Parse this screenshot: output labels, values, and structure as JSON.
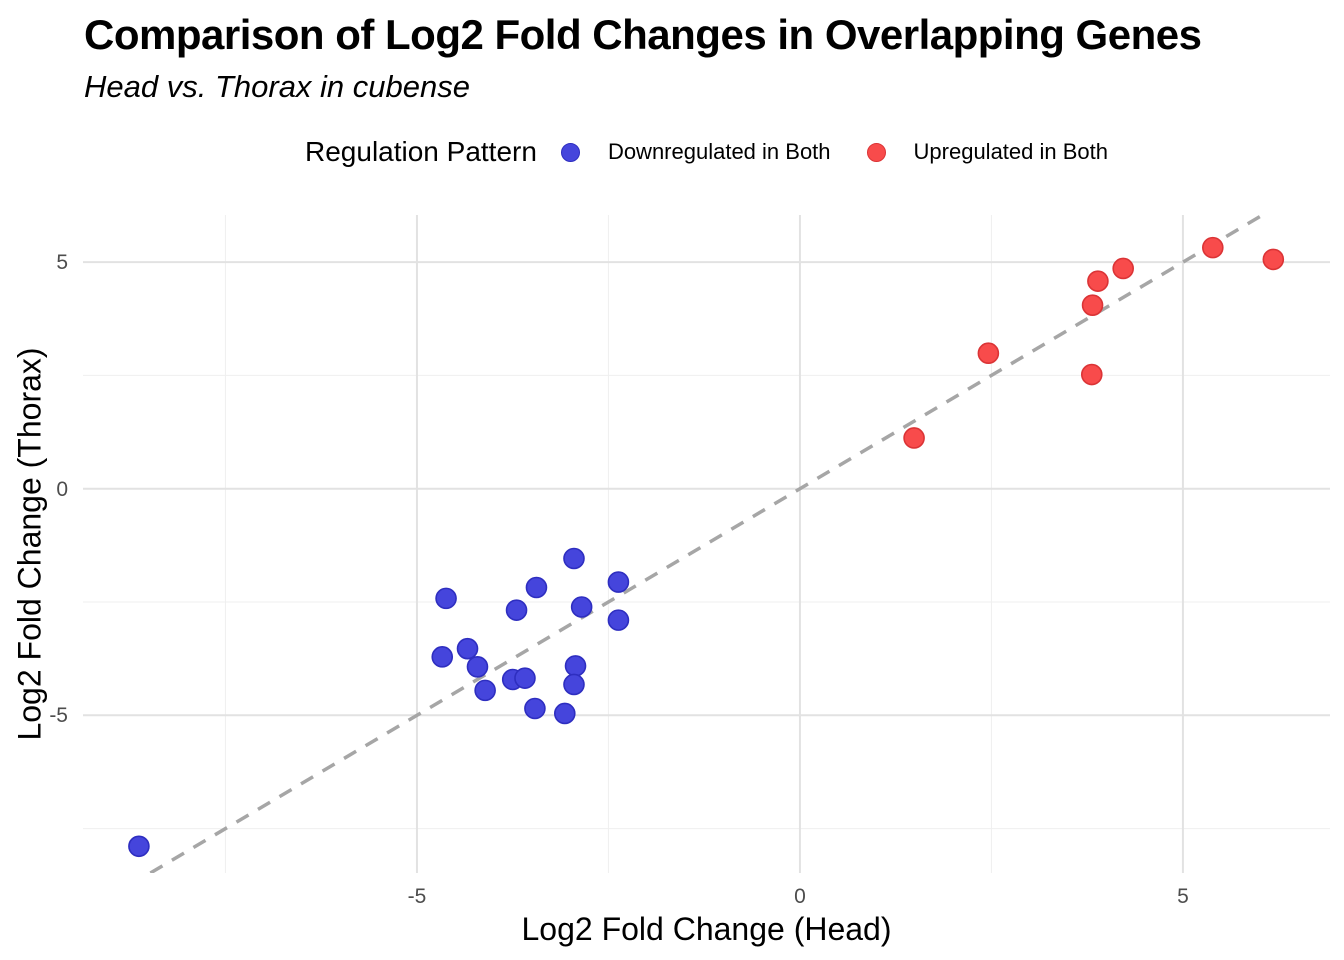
{
  "header": {
    "title": "Comparison of Log2 Fold Changes in Overlapping Genes",
    "subtitle": "Head vs. Thorax in cubense"
  },
  "chart_data": {
    "type": "scatter",
    "title": "Comparison of Log2 Fold Changes in Overlapping Genes",
    "subtitle": "Head vs. Thorax in cubense",
    "xlabel": "Log2 Fold Change (Head)",
    "ylabel": "Log2 Fold Change (Thorax)",
    "legend_title": "Regulation Pattern",
    "legend_position": "top-center",
    "grid": true,
    "xlim": [
      -9.36,
      6.92
    ],
    "ylim": [
      -8.48,
      6.04
    ],
    "x_ticks": [
      -5,
      0,
      5
    ],
    "y_ticks": [
      -5,
      0,
      5
    ],
    "x_minor_ticks": [
      -7.5,
      -2.5,
      2.5
    ],
    "y_minor_ticks": [
      -7.5,
      -2.5,
      2.5
    ],
    "reference_line": {
      "type": "identity y=x",
      "style": "dashed",
      "color": "#A6A6A6"
    },
    "series": [
      {
        "name": "Downregulated in Both",
        "color": "#4545DC",
        "edge_color": "#2E2EC0",
        "points": [
          [
            -8.63,
            -7.89
          ],
          [
            -4.62,
            -2.42
          ],
          [
            -4.67,
            -3.71
          ],
          [
            -4.34,
            -3.53
          ],
          [
            -4.21,
            -3.93
          ],
          [
            -4.11,
            -4.45
          ],
          [
            -3.75,
            -4.21
          ],
          [
            -3.59,
            -4.18
          ],
          [
            -3.7,
            -2.68
          ],
          [
            -3.44,
            -2.18
          ],
          [
            -3.46,
            -4.85
          ],
          [
            -3.07,
            -4.96
          ],
          [
            -2.95,
            -1.54
          ],
          [
            -2.85,
            -2.61
          ],
          [
            -2.93,
            -3.91
          ],
          [
            -2.95,
            -4.32
          ],
          [
            -2.37,
            -2.06
          ],
          [
            -2.37,
            -2.9
          ]
        ]
      },
      {
        "name": "Upregulated in Both",
        "color": "#F84B4B",
        "edge_color": "#DB3436",
        "points": [
          [
            1.49,
            1.12
          ],
          [
            2.46,
            2.99
          ],
          [
            3.81,
            2.52
          ],
          [
            3.82,
            4.05
          ],
          [
            3.89,
            4.58
          ],
          [
            4.22,
            4.86
          ],
          [
            5.39,
            5.32
          ],
          [
            6.18,
            5.06
          ]
        ]
      }
    ],
    "style": {
      "major_grid_color": "#E2E2E2",
      "minor_grid_color": "#EFEFEF",
      "tick_label_color": "#4D4D4D",
      "background": "#FFFFFF"
    }
  }
}
